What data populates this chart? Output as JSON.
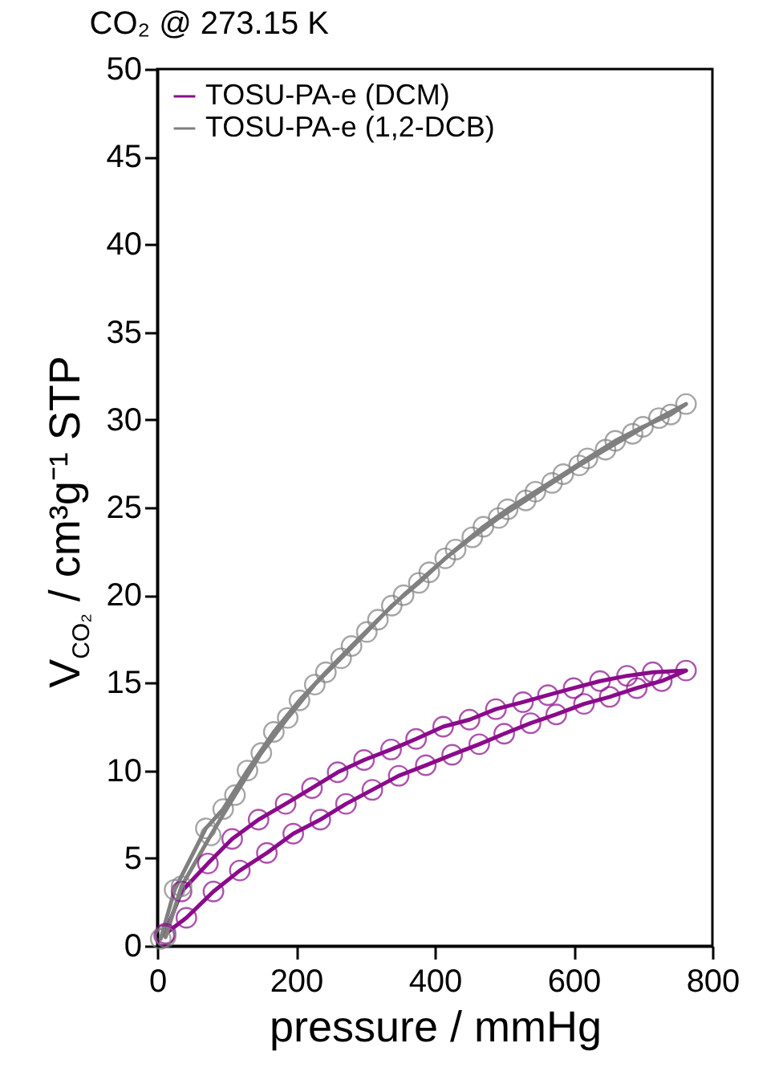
{
  "chart_data": {
    "type": "line",
    "title": "CO₂ @ 273.15 K",
    "xlabel": "pressure / mmHg",
    "ylabel": "V$_{CO₂}$ / cm³g⁻¹ STP",
    "xlim": [
      0,
      800
    ],
    "xticks": [
      0,
      200,
      400,
      600,
      800
    ],
    "ylim": [
      0,
      50
    ],
    "yticks": [
      0,
      5,
      10,
      15,
      20,
      25,
      30,
      35,
      40,
      45,
      50
    ],
    "legend": "top left",
    "marker": "circle",
    "grid": false,
    "series": [
      {
        "name": "TOSU-PA-e (DCM)",
        "color": "#8b0a8b",
        "x": [
          12,
          42,
          81,
          119,
          158,
          196,
          235,
          272,
          310,
          348,
          387,
          425,
          464,
          500,
          538,
          575,
          615,
          652,
          691,
          727,
          762,
          714,
          677,
          638,
          600,
          563,
          527,
          488,
          450,
          412,
          373,
          337,
          298,
          260,
          223,
          185,
          146,
          108,
          73,
          35,
          10
        ],
        "values": [
          0.7,
          1.6,
          3.1,
          4.3,
          5.3,
          6.4,
          7.2,
          8.1,
          8.9,
          9.7,
          10.3,
          10.9,
          11.5,
          12.1,
          12.7,
          13.2,
          13.8,
          14.2,
          14.7,
          15.1,
          15.7,
          15.6,
          15.4,
          15.1,
          14.7,
          14.3,
          13.9,
          13.5,
          12.9,
          12.5,
          11.8,
          11.2,
          10.6,
          9.9,
          9.0,
          8.1,
          7.2,
          6.1,
          4.7,
          3.1,
          0.6
        ]
      },
      {
        "name": "TOSU-PA-e (1,2-DCB)",
        "color": "#808080",
        "x": [
          12,
          35,
          77,
          112,
          150,
          188,
          227,
          265,
          302,
          338,
          377,
          415,
          454,
          492,
          531,
          569,
          608,
          646,
          685,
          723,
          762,
          740,
          700,
          660,
          620,
          585,
          545,
          505,
          470,
          430,
          392,
          355,
          318,
          280,
          243,
          205,
          168,
          130,
          95,
          70,
          25,
          5
        ],
        "values": [
          0.5,
          3.4,
          6.3,
          8.6,
          11.0,
          13.0,
          14.9,
          16.4,
          17.9,
          19.4,
          20.7,
          22.1,
          23.3,
          24.4,
          25.4,
          26.4,
          27.4,
          28.3,
          29.2,
          30.1,
          30.9,
          30.3,
          29.6,
          28.8,
          27.8,
          26.9,
          25.9,
          24.9,
          23.9,
          22.6,
          21.3,
          20.0,
          18.6,
          17.1,
          15.6,
          14.0,
          12.2,
          10.0,
          7.8,
          6.7,
          3.2,
          0.4
        ]
      }
    ]
  }
}
